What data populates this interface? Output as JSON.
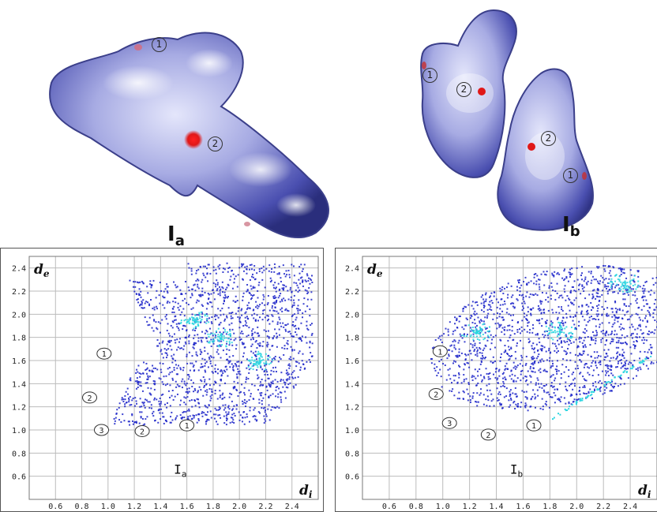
{
  "surfaces": {
    "a": {
      "title_main": "I",
      "title_sub": "a",
      "markers": [
        "1",
        "2"
      ]
    },
    "b": {
      "title_main": "I",
      "title_sub": "b",
      "markers": [
        "1",
        "2",
        "2",
        "1"
      ]
    }
  },
  "chart_data": [
    {
      "type": "scatter",
      "title": "",
      "xlabel": "di",
      "ylabel": "de",
      "xlim": [
        0.4,
        2.6
      ],
      "ylim": [
        0.4,
        2.5
      ],
      "x_ticks": [
        "0.6",
        "0.8",
        "1.0",
        "1.2",
        "1.4",
        "1.6",
        "1.8",
        "2.0",
        "2.2",
        "2.4"
      ],
      "y_ticks": [
        "0.6",
        "0.8",
        "1.0",
        "1.2",
        "1.4",
        "1.6",
        "1.8",
        "2.0",
        "2.2",
        "2.4"
      ],
      "grid": true,
      "label": "Ia",
      "label_main": "I",
      "label_sub": "a",
      "annotations": [
        {
          "text": "1",
          "x": 0.97,
          "y": 1.66
        },
        {
          "text": "2",
          "x": 0.86,
          "y": 1.28
        },
        {
          "text": "3",
          "x": 0.95,
          "y": 1.0
        },
        {
          "text": "2",
          "x": 1.26,
          "y": 0.99
        },
        {
          "text": "1",
          "x": 1.6,
          "y": 1.04
        }
      ],
      "hotspots": [
        {
          "x": 1.85,
          "y": 1.8
        },
        {
          "x": 1.65,
          "y": 1.95
        },
        {
          "x": 2.15,
          "y": 1.6
        }
      ]
    },
    {
      "type": "scatter",
      "title": "",
      "xlabel": "di",
      "ylabel": "de",
      "xlim": [
        0.4,
        2.6
      ],
      "ylim": [
        0.4,
        2.5
      ],
      "x_ticks": [
        "0.6",
        "0.8",
        "1.0",
        "1.2",
        "1.4",
        "1.6",
        "1.8",
        "2.0",
        "2.2",
        "2.4"
      ],
      "y_ticks": [
        "0.6",
        "0.8",
        "1.0",
        "1.2",
        "1.4",
        "1.6",
        "1.8",
        "2.0",
        "2.2",
        "2.4"
      ],
      "grid": true,
      "label": "Ib",
      "label_main": "I",
      "label_sub": "b",
      "annotations": [
        {
          "text": "1",
          "x": 0.98,
          "y": 1.68
        },
        {
          "text": "2",
          "x": 0.95,
          "y": 1.31
        },
        {
          "text": "3",
          "x": 1.05,
          "y": 1.06
        },
        {
          "text": "2",
          "x": 1.34,
          "y": 0.96
        },
        {
          "text": "1",
          "x": 1.68,
          "y": 1.04
        }
      ],
      "hotspots": [
        {
          "x": 1.87,
          "y": 1.86
        },
        {
          "x": 2.35,
          "y": 2.28
        },
        {
          "x": 1.25,
          "y": 1.85
        }
      ]
    }
  ],
  "colors": {
    "surface_blue": "#4a4fb0",
    "surface_light": "#c9cbef",
    "hotspot_red": "#e01818",
    "scatter_blue": "#1a22c8",
    "scatter_cyan": "#30d6e0",
    "grid": "#bbbbbb"
  }
}
